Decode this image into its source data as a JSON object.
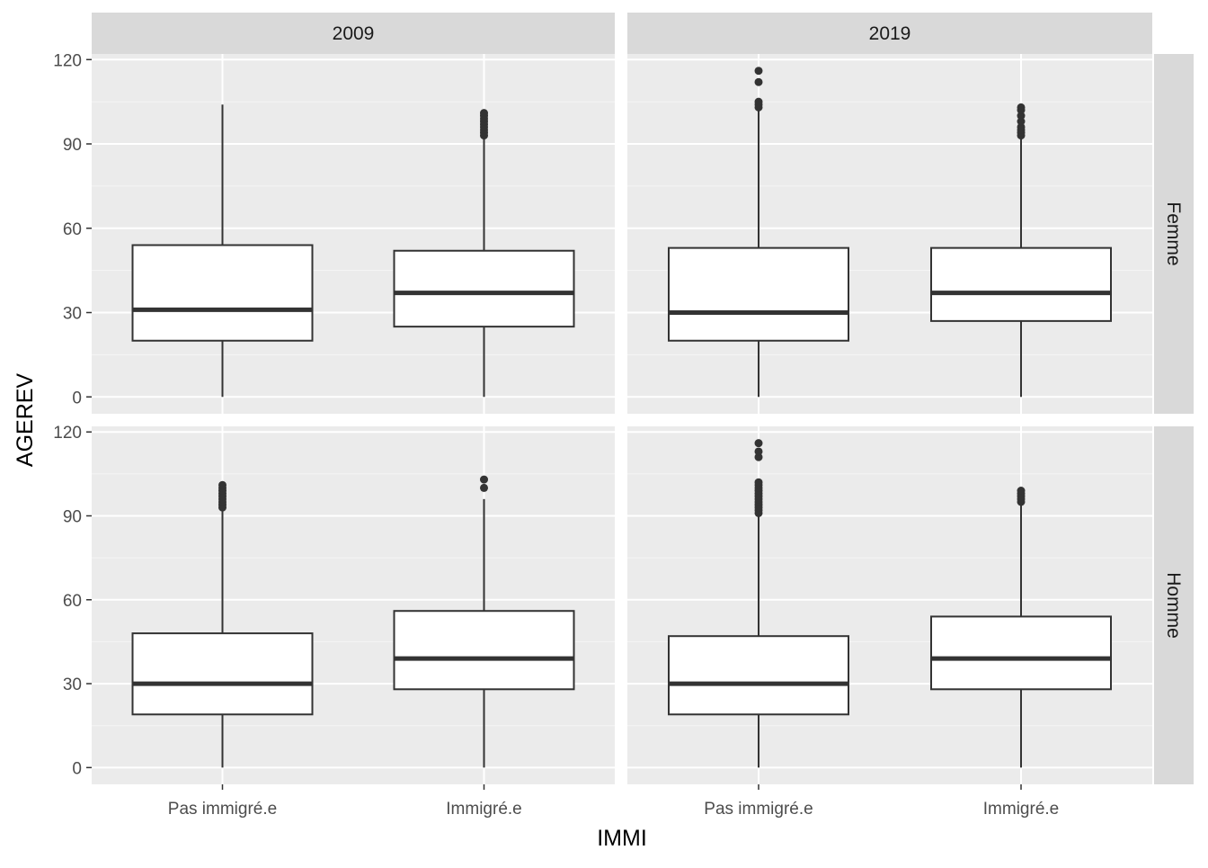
{
  "chart_data": {
    "type": "boxplot",
    "title": "",
    "xlabel": "IMMI",
    "ylabel": "AGEREV",
    "ylim": [
      -6,
      122
    ],
    "y_ticks": [
      0,
      30,
      60,
      90,
      120
    ],
    "y_tick_labels": [
      "0",
      "30",
      "60",
      "90",
      "120"
    ],
    "categories": [
      "Pas immigré.e",
      "Immigré.e"
    ],
    "col_facets": [
      "2009",
      "2019"
    ],
    "row_facets": [
      "Femme",
      "Homme"
    ],
    "grid": true,
    "colors": {
      "panel_bg": "#ebebeb",
      "grid_major": "#ffffff",
      "grid_minor": "#f5f5f5",
      "strip_bg": "#d9d9d9",
      "box_fill": "#ffffff",
      "box_line": "#333333",
      "tick_mark": "#333333"
    },
    "panels": [
      {
        "col": "2009",
        "row": "Femme",
        "boxes": [
          {
            "category": "Pas immigré.e",
            "min": 0,
            "q1": 20,
            "median": 31,
            "q3": 54,
            "max": 104,
            "outliers": []
          },
          {
            "category": "Immigré.e",
            "min": 0,
            "q1": 25,
            "median": 37,
            "q3": 52,
            "max": 92,
            "outliers": [
              93,
              94,
              95,
              96,
              97,
              98,
              99,
              100,
              101
            ]
          }
        ]
      },
      {
        "col": "2019",
        "row": "Femme",
        "boxes": [
          {
            "category": "Pas immigré.e",
            "min": 0,
            "q1": 20,
            "median": 30,
            "q3": 53,
            "max": 102,
            "outliers": [
              103,
              104,
              105,
              112,
              116
            ]
          },
          {
            "category": "Immigré.e",
            "min": 0,
            "q1": 27,
            "median": 37,
            "q3": 53,
            "max": 92,
            "outliers": [
              93,
              94,
              95,
              96,
              98,
              100,
              102,
              103
            ]
          }
        ]
      },
      {
        "col": "2009",
        "row": "Homme",
        "boxes": [
          {
            "category": "Pas immigré.e",
            "min": 0,
            "q1": 19,
            "median": 30,
            "q3": 48,
            "max": 92,
            "outliers": [
              93,
              94,
              95,
              96,
              97,
              98,
              99,
              100,
              101
            ]
          },
          {
            "category": "Immigré.e",
            "min": 0,
            "q1": 28,
            "median": 39,
            "q3": 56,
            "max": 96,
            "outliers": [
              100,
              103
            ]
          }
        ]
      },
      {
        "col": "2019",
        "row": "Homme",
        "boxes": [
          {
            "category": "Pas immigré.e",
            "min": 0,
            "q1": 19,
            "median": 30,
            "q3": 47,
            "max": 90,
            "outliers": [
              91,
              92,
              93,
              94,
              95,
              96,
              97,
              98,
              99,
              100,
              101,
              102,
              111,
              113,
              116
            ]
          },
          {
            "category": "Immigré.e",
            "min": 0,
            "q1": 28,
            "median": 39,
            "q3": 54,
            "max": 94,
            "outliers": [
              95,
              96,
              97,
              98,
              99
            ]
          }
        ]
      }
    ]
  }
}
